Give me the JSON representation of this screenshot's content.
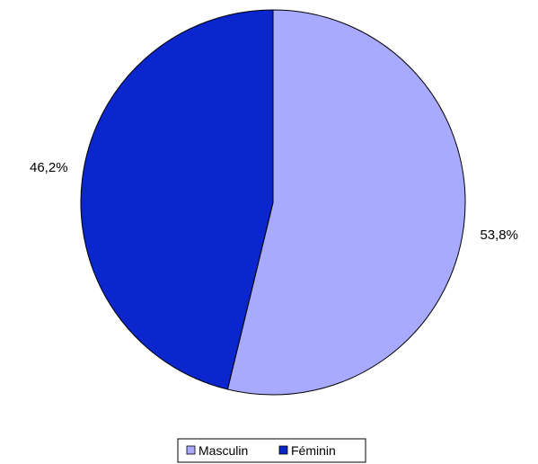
{
  "chart_data": {
    "type": "pie",
    "categories": [
      "Masculin",
      "Féminin"
    ],
    "values": [
      53.8,
      46.2
    ],
    "data_labels": [
      "53,8%",
      "46,2%"
    ],
    "colors": [
      "#a8aaff",
      "#0a26cc"
    ],
    "start_angle": "12 o'clock",
    "direction": "clockwise",
    "legend_position": "bottom",
    "title": "",
    "xlabel": "",
    "ylabel": ""
  }
}
